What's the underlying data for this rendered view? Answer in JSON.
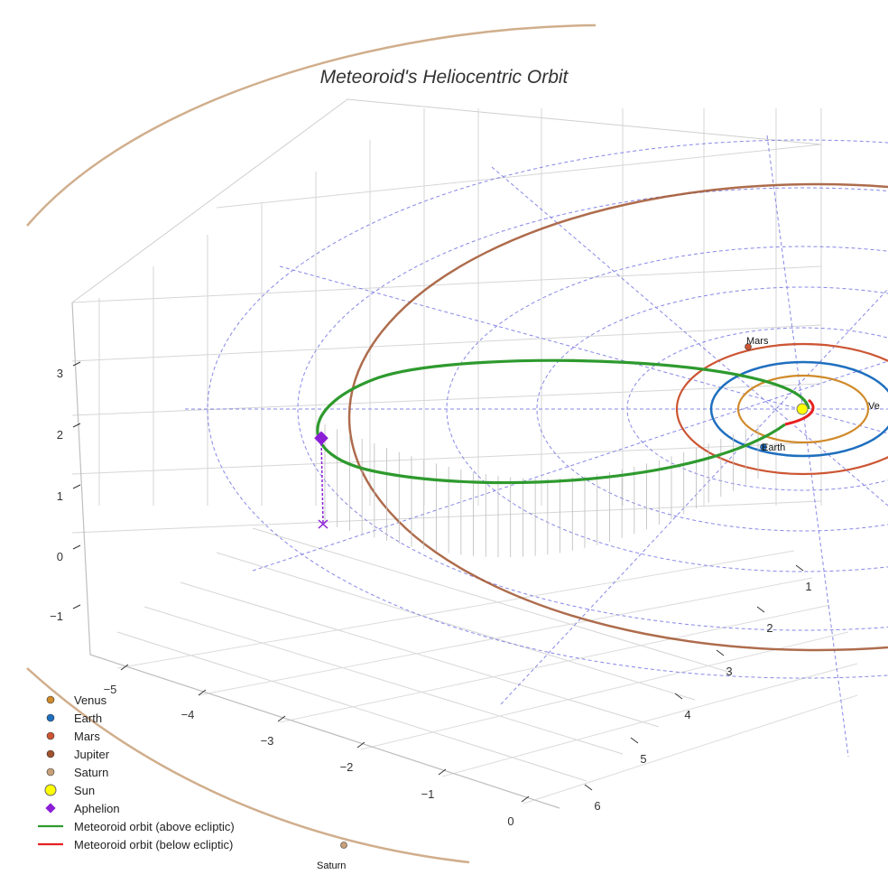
{
  "chart_data": {
    "type": "3d-line",
    "title": "Meteoroid's Heliocentric Orbit",
    "axes": {
      "x_ticks": [
        "−5",
        "−4",
        "−3",
        "−2",
        "−1",
        "0"
      ],
      "y_ticks": [
        "1",
        "2",
        "3",
        "4",
        "5",
        "6"
      ],
      "z_ticks": [
        "3",
        "2",
        "1",
        "0",
        "−1"
      ]
    },
    "grid": true,
    "legend_placement": "bottom-left",
    "bodies": [
      {
        "name": "Venus",
        "color": "#d08a2a",
        "orbit_radius_au": 0.72
      },
      {
        "name": "Earth",
        "color": "#1f6fbf",
        "orbit_radius_au": 1.0
      },
      {
        "name": "Mars",
        "color": "#cc5533",
        "orbit_radius_au": 1.52
      },
      {
        "name": "Jupiter",
        "color": "#a0522d",
        "orbit_radius_au": 5.2
      },
      {
        "name": "Saturn",
        "color": "#c8a078",
        "orbit_radius_au": 9.5
      }
    ],
    "planet_labels": [
      {
        "name": "Mars",
        "text": "Mars"
      },
      {
        "name": "Earth",
        "text": "Earth"
      },
      {
        "name": "Venus",
        "text": "Ve"
      },
      {
        "name": "Saturn",
        "text": "Saturn"
      }
    ],
    "legend": [
      {
        "label": "Venus",
        "marker": "dot",
        "color": "#d08a2a"
      },
      {
        "label": "Earth",
        "marker": "dot",
        "color": "#1f6fbf"
      },
      {
        "label": "Mars",
        "marker": "dot",
        "color": "#cc5533"
      },
      {
        "label": "Jupiter",
        "marker": "dot",
        "color": "#a0522d"
      },
      {
        "label": "Saturn",
        "marker": "dot",
        "color": "#c8a078"
      },
      {
        "label": "Sun",
        "marker": "sun",
        "color": "#ffff00"
      },
      {
        "label": "Aphelion",
        "marker": "diamond",
        "color": "#8a1fd6"
      },
      {
        "label": "Meteoroid orbit (above ecliptic)",
        "marker": "line",
        "color": "#2e9a2e"
      },
      {
        "label": "Meteoroid orbit (below ecliptic)",
        "marker": "line",
        "color": "#e82020"
      }
    ],
    "meteoroid_orbit": {
      "segments": [
        {
          "name": "above ecliptic",
          "color": "#2e9a2e"
        },
        {
          "name": "below ecliptic",
          "color": "#e82020"
        }
      ]
    },
    "aphelion": {
      "color": "#8a1fd6"
    }
  }
}
